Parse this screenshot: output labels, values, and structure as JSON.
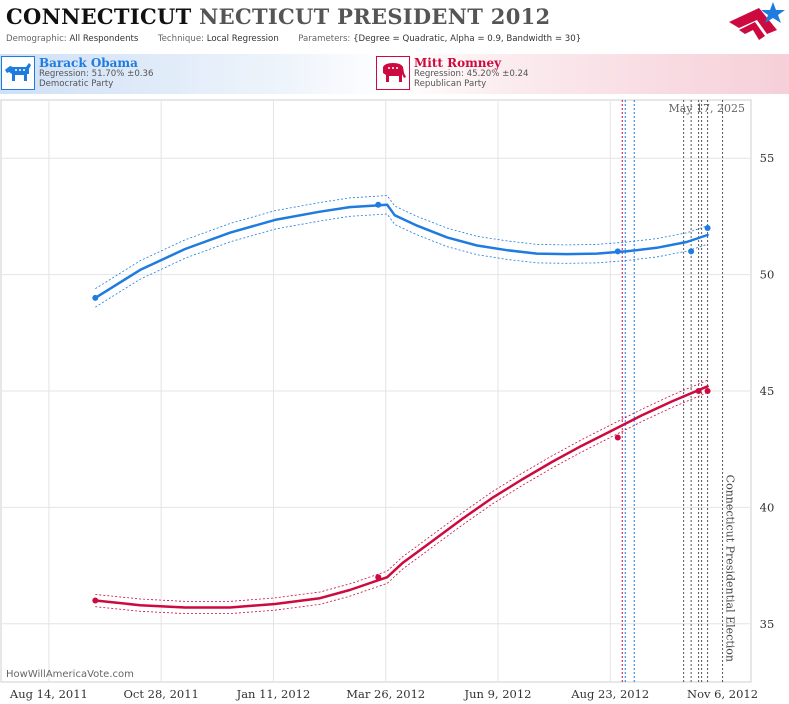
{
  "header": {
    "title_main": "CONNECTICUT",
    "title_rest": "NECTICUT PRESIDENT 2012",
    "demographic_label": "Demographic:",
    "demographic_value": "All Respondents",
    "technique_label": "Technique:",
    "technique_value": "Local Regression",
    "parameters_label": "Parameters:",
    "parameters_value": "{Degree = Quadratic, Alpha = 0.9, Bandwidth = 30}"
  },
  "candidates": [
    {
      "name": "Barack Obama",
      "regression": "Regression: 51.70% ±0.36",
      "party": "Democratic Party",
      "color": "#1e7be0",
      "icon": "donkey-icon"
    },
    {
      "name": "Mitt Romney",
      "regression": "Regression: 45.20% ±0.24",
      "party": "Republican Party",
      "color": "#cc0a3f",
      "icon": "elephant-icon"
    }
  ],
  "credit": "HowWillAmericaVote.com",
  "colors": {
    "democrat": "#1e7be0",
    "republican": "#cc0a3f",
    "grid": "#e4e4e4"
  },
  "chart_data": {
    "type": "line",
    "date_label": "May 17, 2025",
    "annotation": "Connecticut Presidential Election",
    "x_ticks": [
      "Aug 14, 2011",
      "Oct 28, 2011",
      "Jan 11, 2012",
      "Mar 26, 2012",
      "Jun 9, 2012",
      "Aug 23, 2012",
      "Nov 6, 2012"
    ],
    "x_range": [
      "2011-07-13",
      "2012-11-25"
    ],
    "y_ticks": [
      35,
      40,
      45,
      50,
      55
    ],
    "ylim": [
      32.5,
      57.5
    ],
    "event_date": "2012-11-06",
    "poll_markers": [
      {
        "date": "2012-08-31",
        "color": "#cc0a3f"
      },
      {
        "date": "2012-09-02",
        "color": "#1e7be0"
      },
      {
        "date": "2012-09-08",
        "color": "#1e7be0"
      },
      {
        "date": "2012-10-11",
        "color": "#555555"
      },
      {
        "date": "2012-10-16",
        "color": "#555555"
      },
      {
        "date": "2012-10-21",
        "color": "#555555"
      },
      {
        "date": "2012-10-23",
        "color": "#555555"
      },
      {
        "date": "2012-10-27",
        "color": "#555555"
      }
    ],
    "series": [
      {
        "name": "Barack Obama",
        "color": "#1e7be0",
        "band": 0.36,
        "points": [
          {
            "date": "2011-09-14",
            "value": 49
          },
          {
            "date": "2012-03-21",
            "value": 53
          },
          {
            "date": "2012-08-28",
            "value": 51
          },
          {
            "date": "2012-10-16",
            "value": 51
          },
          {
            "date": "2012-10-27",
            "value": 52
          }
        ],
        "trend": [
          [
            "2011-09-14",
            49.0
          ],
          [
            "2011-10-14",
            50.2
          ],
          [
            "2011-11-13",
            51.1
          ],
          [
            "2011-12-13",
            51.8
          ],
          [
            "2012-01-12",
            52.35
          ],
          [
            "2012-02-11",
            52.7
          ],
          [
            "2012-03-02",
            52.9
          ],
          [
            "2012-03-27",
            53.0
          ],
          [
            "2012-04-01",
            52.55
          ],
          [
            "2012-04-16",
            52.1
          ],
          [
            "2012-05-06",
            51.6
          ],
          [
            "2012-05-26",
            51.25
          ],
          [
            "2012-06-15",
            51.05
          ],
          [
            "2012-07-05",
            50.9
          ],
          [
            "2012-07-25",
            50.88
          ],
          [
            "2012-08-14",
            50.9
          ],
          [
            "2012-09-03",
            51.0
          ],
          [
            "2012-09-23",
            51.15
          ],
          [
            "2012-10-13",
            51.4
          ],
          [
            "2012-10-27",
            51.7
          ]
        ]
      },
      {
        "name": "Mitt Romney",
        "color": "#cc0a3f",
        "band": 0.24,
        "points": [
          {
            "date": "2011-09-14",
            "value": 36
          },
          {
            "date": "2012-03-21",
            "value": 37
          },
          {
            "date": "2012-08-28",
            "value": 43
          },
          {
            "date": "2012-10-21",
            "value": 45
          },
          {
            "date": "2012-10-27",
            "value": 45
          }
        ],
        "trend": [
          [
            "2011-09-14",
            36.0
          ],
          [
            "2011-10-14",
            35.8
          ],
          [
            "2011-11-13",
            35.7
          ],
          [
            "2011-12-13",
            35.7
          ],
          [
            "2012-01-12",
            35.85
          ],
          [
            "2012-02-11",
            36.1
          ],
          [
            "2012-03-02",
            36.45
          ],
          [
            "2012-03-27",
            37.0
          ],
          [
            "2012-04-06",
            37.6
          ],
          [
            "2012-04-26",
            38.55
          ],
          [
            "2012-05-16",
            39.5
          ],
          [
            "2012-06-05",
            40.4
          ],
          [
            "2012-06-25",
            41.2
          ],
          [
            "2012-07-15",
            41.95
          ],
          [
            "2012-08-04",
            42.65
          ],
          [
            "2012-08-24",
            43.3
          ],
          [
            "2012-09-13",
            43.95
          ],
          [
            "2012-10-03",
            44.55
          ],
          [
            "2012-10-27",
            45.2
          ]
        ]
      }
    ]
  }
}
